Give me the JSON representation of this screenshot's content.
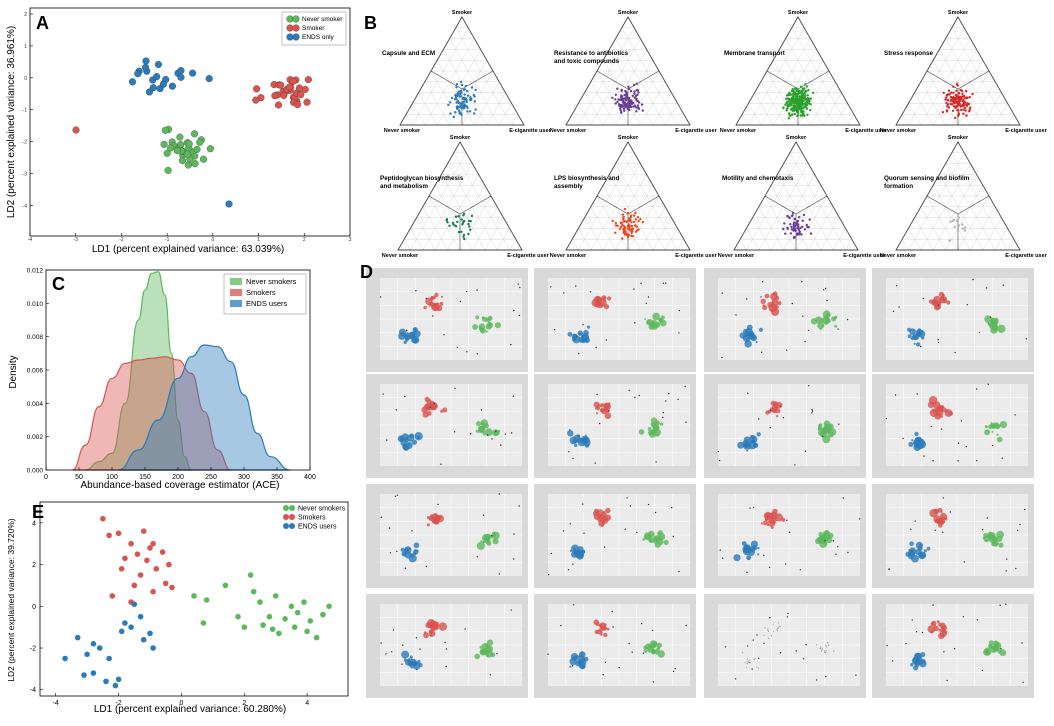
{
  "colors": {
    "never": "#5cb85c",
    "smoker": "#d9534f",
    "ends": "#2b7bba",
    "capsule": "#2b7bba",
    "resistance": "#6a3d9a",
    "membrane": "#2ca02c",
    "stress": "#d62728",
    "peptido": "#1b7a5a",
    "lps": "#e8491d",
    "motility": "#6a3d9a",
    "quorum": "#b0b0b0"
  },
  "panel_labels": {
    "a": "A",
    "b": "B",
    "c": "C",
    "d": "D",
    "e": "E"
  },
  "panelA": {
    "legend": [
      "Never smoker",
      "Smoker",
      "ENDS only"
    ],
    "xlabel": "LD1 (percent explained variance: 63.039%)",
    "ylabel": "LD2 (percent explained variance: 36.961%)",
    "xticks": [
      "-4",
      "-3",
      "-2",
      "-1",
      "0",
      "1",
      "2",
      "3"
    ],
    "yticks": [
      "2",
      "1",
      "0",
      "-1",
      "-2",
      "-3",
      "-4"
    ]
  },
  "panelB": {
    "vertex_top": "Smoker",
    "vertex_left": "Never smoker",
    "vertex_right": "E-cigarette user",
    "plots": [
      {
        "title": "Capsule and ECM",
        "color_key": "capsule"
      },
      {
        "title": "Resistance to antibiotics and toxic compounds",
        "color_key": "resistance"
      },
      {
        "title": "Membrane transport",
        "color_key": "membrane"
      },
      {
        "title": "Stress response",
        "color_key": "stress"
      },
      {
        "title": "Peptidoglycan biosynthesis and metabolism",
        "color_key": "peptido"
      },
      {
        "title": "LPS biosynthesis and assembly",
        "color_key": "lps"
      },
      {
        "title": "Motility and chemotaxis",
        "color_key": "motility"
      },
      {
        "title": "Quorum sensing and biofilm formation",
        "color_key": "quorum"
      }
    ]
  },
  "chart_data": [
    {
      "type": "area",
      "title": "",
      "xlabel": "Abundance-based coverage estimator (ACE)",
      "ylabel": "Density",
      "xlim": [
        0,
        400
      ],
      "ylim": [
        0,
        0.012
      ],
      "xticks": [
        "0",
        "50",
        "100",
        "150",
        "200",
        "250",
        "300",
        "350",
        "400"
      ],
      "yticks": [
        "0.000",
        "0.002",
        "0.004",
        "0.006",
        "0.008",
        "0.010",
        "0.012"
      ],
      "legend": "top-right",
      "series": [
        {
          "name": "Never smokers",
          "color": "#5cb85c",
          "x": [
            60,
            80,
            100,
            120,
            140,
            150,
            160,
            170,
            180,
            190,
            200,
            210,
            220
          ],
          "y": [
            0,
            0.0005,
            0.001,
            0.004,
            0.009,
            0.0108,
            0.0118,
            0.0119,
            0.0105,
            0.007,
            0.003,
            0.0008,
            0
          ]
        },
        {
          "name": "Smokers",
          "color": "#d9534f",
          "x": [
            40,
            60,
            80,
            100,
            120,
            140,
            160,
            180,
            200,
            220,
            240,
            260,
            280
          ],
          "y": [
            0,
            0.0015,
            0.0038,
            0.0055,
            0.0064,
            0.0066,
            0.0067,
            0.0068,
            0.0066,
            0.0058,
            0.0035,
            0.0012,
            0
          ]
        },
        {
          "name": "ENDS users",
          "color": "#2b7bba",
          "x": [
            110,
            140,
            170,
            200,
            220,
            240,
            260,
            280,
            300,
            320,
            340,
            370
          ],
          "y": [
            0,
            0.0012,
            0.003,
            0.0055,
            0.0068,
            0.0075,
            0.0074,
            0.0065,
            0.0045,
            0.0022,
            0.0008,
            0
          ]
        }
      ]
    },
    {
      "type": "scatter",
      "title": "",
      "xlabel": "LD1 (percent explained variance: 60.280%)",
      "ylabel": "LD2 (percent explained variance: 39.720%)",
      "xlim": [
        -4.5,
        5.3
      ],
      "ylim": [
        -4.3,
        5.0
      ],
      "xticks": [
        "-4",
        "-2",
        "0",
        "2",
        "4"
      ],
      "yticks": [
        "4",
        "2",
        "0",
        "-2",
        "-4"
      ],
      "legend": "top-right",
      "series": [
        {
          "name": "Never smokers",
          "color": "#5cb85c",
          "points": [
            [
              0.4,
              0.5
            ],
            [
              0.8,
              0.3
            ],
            [
              0.7,
              -0.8
            ],
            [
              1.4,
              1.0
            ],
            [
              2.2,
              1.5
            ],
            [
              2.5,
              0.2
            ],
            [
              2.8,
              -0.5
            ],
            [
              3.0,
              0.5
            ],
            [
              2.6,
              -0.9
            ],
            [
              2.9,
              -1.1
            ],
            [
              3.3,
              -0.6
            ],
            [
              3.6,
              -1.0
            ],
            [
              3.7,
              -0.3
            ],
            [
              3.9,
              0.2
            ],
            [
              4.1,
              -0.7
            ],
            [
              4.3,
              -1.5
            ],
            [
              4.5,
              -0.4
            ],
            [
              4.7,
              0.0
            ],
            [
              2.0,
              -1.0
            ],
            [
              2.3,
              0.7
            ],
            [
              3.1,
              -1.3
            ],
            [
              3.5,
              0.0
            ],
            [
              1.8,
              -0.5
            ],
            [
              4.0,
              -1.2
            ]
          ]
        },
        {
          "name": "Smokers",
          "color": "#d9534f",
          "points": [
            [
              -2.5,
              4.2
            ],
            [
              -2.0,
              3.5
            ],
            [
              -1.6,
              3.0
            ],
            [
              -1.2,
              3.6
            ],
            [
              -0.9,
              3.0
            ],
            [
              -1.8,
              2.3
            ],
            [
              -1.4,
              2.5
            ],
            [
              -1.1,
              2.2
            ],
            [
              -0.6,
              2.6
            ],
            [
              -1.3,
              1.5
            ],
            [
              -0.8,
              1.8
            ],
            [
              -0.5,
              1.1
            ],
            [
              -1.5,
              1.0
            ],
            [
              -2.2,
              0.5
            ],
            [
              -1.9,
              1.8
            ],
            [
              -0.9,
              0.7
            ],
            [
              -1.6,
              0.2
            ],
            [
              -0.4,
              2.0
            ],
            [
              -1.0,
              2.8
            ],
            [
              -2.3,
              3.4
            ],
            [
              -0.3,
              0.9
            ]
          ]
        },
        {
          "name": "ENDS users",
          "color": "#2b7bba",
          "points": [
            [
              -3.3,
              -1.5
            ],
            [
              -3.0,
              -2.3
            ],
            [
              -3.7,
              -2.5
            ],
            [
              -2.8,
              -3.2
            ],
            [
              -2.6,
              -2.0
            ],
            [
              -2.3,
              -2.5
            ],
            [
              -2.0,
              -3.5
            ],
            [
              -2.1,
              -3.8
            ],
            [
              -1.6,
              -1.0
            ],
            [
              -1.8,
              -0.8
            ],
            [
              -1.3,
              -0.5
            ],
            [
              -1.2,
              -1.6
            ],
            [
              -0.9,
              -2.0
            ],
            [
              -1.0,
              -1.3
            ],
            [
              -1.5,
              0.1
            ],
            [
              -2.8,
              -1.8
            ],
            [
              -2.4,
              -3.6
            ],
            [
              -1.9,
              -1.2
            ],
            [
              -3.1,
              -3.3
            ]
          ]
        }
      ]
    }
  ],
  "panelE_legend": [
    "Never smokers",
    "Smokers",
    "ENDS users"
  ]
}
